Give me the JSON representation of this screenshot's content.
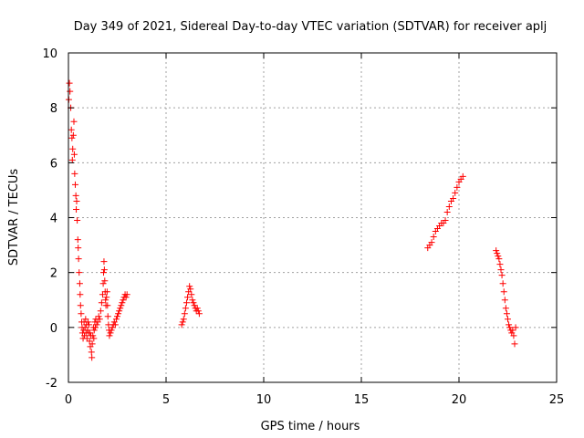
{
  "chart_data": {
    "type": "scatter",
    "title": "Day 349 of 2021, Sidereal Day-to-day VTEC variation (SDTVAR) for receiver aplj",
    "xlabel": "GPS time / hours",
    "ylabel": "SDTVAR / TECUs",
    "xlim": [
      0,
      25
    ],
    "ylim": [
      -2,
      10
    ],
    "xticks": [
      0,
      5,
      10,
      15,
      20,
      25
    ],
    "yticks": [
      -2,
      0,
      2,
      4,
      6,
      8,
      10
    ],
    "grid": true,
    "marker": "plus",
    "color": "#ff0000",
    "series": [
      {
        "name": "SDTVAR",
        "segments": [
          {
            "points": [
              [
                0.02,
                8.3
              ],
              [
                0.05,
                8.9
              ],
              [
                0.08,
                8.6
              ],
              [
                0.12,
                8.0
              ],
              [
                0.15,
                7.2
              ],
              [
                0.18,
                6.9
              ],
              [
                0.2,
                6.1
              ],
              [
                0.22,
                6.5
              ],
              [
                0.25,
                7.0
              ],
              [
                0.28,
                7.5
              ],
              [
                0.3,
                6.3
              ],
              [
                0.32,
                5.6
              ],
              [
                0.35,
                5.2
              ],
              [
                0.38,
                4.8
              ],
              [
                0.4,
                4.3
              ],
              [
                0.42,
                4.6
              ],
              [
                0.45,
                3.9
              ],
              [
                0.48,
                3.2
              ],
              [
                0.5,
                2.9
              ],
              [
                0.52,
                2.5
              ],
              [
                0.55,
                2.0
              ],
              [
                0.58,
                1.6
              ],
              [
                0.6,
                1.2
              ],
              [
                0.62,
                0.8
              ],
              [
                0.65,
                0.5
              ],
              [
                0.68,
                0.2
              ],
              [
                0.7,
                0.0
              ],
              [
                0.72,
                -0.2
              ],
              [
                0.75,
                -0.4
              ],
              [
                0.78,
                -0.1
              ],
              [
                0.8,
                0.2
              ],
              [
                0.82,
                -0.3
              ],
              [
                0.85,
                0.0
              ],
              [
                0.88,
                0.3
              ],
              [
                0.9,
                -0.2
              ],
              [
                0.92,
                0.1
              ],
              [
                0.95,
                -0.4
              ],
              [
                0.98,
                -0.1
              ],
              [
                1.0,
                0.2
              ],
              [
                1.02,
                -0.2
              ],
              [
                1.05,
                0.1
              ],
              [
                1.08,
                -0.5
              ],
              [
                1.1,
                -0.2
              ],
              [
                1.12,
                -0.7
              ],
              [
                1.15,
                -0.3
              ],
              [
                1.18,
                -0.9
              ],
              [
                1.2,
                -1.1
              ],
              [
                1.22,
                -0.6
              ],
              [
                1.25,
                -0.3
              ],
              [
                1.28,
                0.0
              ],
              [
                1.3,
                -0.4
              ],
              [
                1.32,
                -0.1
              ],
              [
                1.35,
                0.2
              ],
              [
                1.38,
                0.0
              ],
              [
                1.4,
                0.3
              ],
              [
                1.45,
                0.1
              ],
              [
                1.5,
                0.2
              ],
              [
                1.55,
                0.4
              ],
              [
                1.6,
                0.3
              ],
              [
                1.65,
                0.6
              ],
              [
                1.7,
                0.9
              ],
              [
                1.75,
                1.2
              ],
              [
                1.78,
                1.6
              ],
              [
                1.8,
                2.0
              ],
              [
                1.82,
                2.4
              ],
              [
                1.84,
                2.1
              ],
              [
                1.86,
                1.7
              ],
              [
                1.88,
                1.3
              ],
              [
                1.9,
                1.0
              ],
              [
                1.92,
                0.8
              ],
              [
                1.95,
                1.1
              ],
              [
                1.98,
                1.3
              ],
              [
                2.0,
                0.8
              ],
              [
                2.02,
                0.4
              ],
              [
                2.05,
                0.1
              ],
              [
                2.08,
                -0.1
              ],
              [
                2.1,
                -0.3
              ],
              [
                2.15,
                -0.2
              ],
              [
                2.2,
                -0.1
              ],
              [
                2.25,
                0.0
              ],
              [
                2.3,
                0.1
              ],
              [
                2.35,
                0.2
              ],
              [
                2.4,
                0.1
              ],
              [
                2.45,
                0.3
              ],
              [
                2.5,
                0.4
              ],
              [
                2.55,
                0.5
              ],
              [
                2.6,
                0.6
              ],
              [
                2.65,
                0.7
              ],
              [
                2.7,
                0.8
              ],
              [
                2.75,
                0.9
              ],
              [
                2.8,
                1.0
              ],
              [
                2.85,
                1.1
              ],
              [
                2.9,
                1.2
              ],
              [
                2.95,
                1.1
              ],
              [
                3.0,
                1.2
              ]
            ]
          },
          {
            "points": [
              [
                5.8,
                0.1
              ],
              [
                5.85,
                0.2
              ],
              [
                5.9,
                0.3
              ],
              [
                5.95,
                0.5
              ],
              [
                6.0,
                0.7
              ],
              [
                6.05,
                0.9
              ],
              [
                6.1,
                1.1
              ],
              [
                6.15,
                1.3
              ],
              [
                6.2,
                1.5
              ],
              [
                6.25,
                1.4
              ],
              [
                6.3,
                1.2
              ],
              [
                6.35,
                1.0
              ],
              [
                6.4,
                0.9
              ],
              [
                6.45,
                0.8
              ],
              [
                6.5,
                0.7
              ],
              [
                6.55,
                0.6
              ],
              [
                6.6,
                0.7
              ],
              [
                6.65,
                0.6
              ],
              [
                6.7,
                0.5
              ]
            ]
          },
          {
            "points": [
              [
                18.4,
                2.9
              ],
              [
                18.5,
                3.0
              ],
              [
                18.6,
                3.1
              ],
              [
                18.7,
                3.3
              ],
              [
                18.8,
                3.5
              ],
              [
                18.9,
                3.6
              ],
              [
                19.0,
                3.7
              ],
              [
                19.1,
                3.8
              ],
              [
                19.2,
                3.8
              ],
              [
                19.3,
                3.9
              ],
              [
                19.4,
                4.2
              ],
              [
                19.5,
                4.4
              ],
              [
                19.6,
                4.6
              ],
              [
                19.7,
                4.7
              ],
              [
                19.8,
                4.9
              ],
              [
                19.9,
                5.1
              ],
              [
                20.0,
                5.3
              ],
              [
                20.1,
                5.4
              ],
              [
                20.2,
                5.5
              ]
            ]
          },
          {
            "points": [
              [
                21.9,
                2.8
              ],
              [
                21.95,
                2.7
              ],
              [
                22.0,
                2.6
              ],
              [
                22.05,
                2.5
              ],
              [
                22.1,
                2.3
              ],
              [
                22.15,
                2.1
              ],
              [
                22.2,
                1.9
              ],
              [
                22.25,
                1.6
              ],
              [
                22.3,
                1.3
              ],
              [
                22.35,
                1.0
              ],
              [
                22.4,
                0.7
              ],
              [
                22.45,
                0.5
              ],
              [
                22.5,
                0.3
              ],
              [
                22.55,
                0.1
              ],
              [
                22.6,
                0.0
              ],
              [
                22.65,
                -0.1
              ],
              [
                22.7,
                -0.2
              ],
              [
                22.75,
                -0.1
              ],
              [
                22.8,
                -0.3
              ],
              [
                22.85,
                -0.6
              ],
              [
                22.9,
                0.0
              ]
            ]
          }
        ]
      }
    ]
  }
}
